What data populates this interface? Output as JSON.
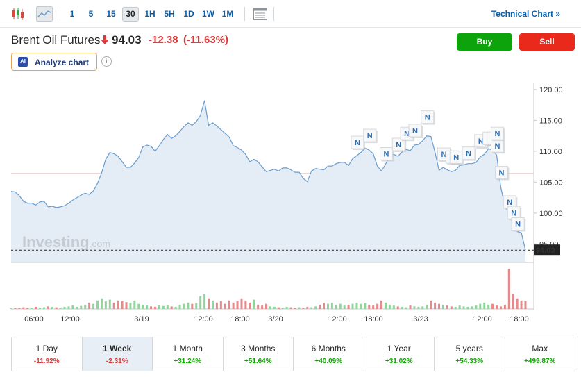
{
  "toolbar": {
    "chart_type_icons": [
      "candlestick-icon",
      "area-chart-icon"
    ],
    "timeframes": [
      "1",
      "5",
      "15",
      "30",
      "1H",
      "5H",
      "1D",
      "1W",
      "1M"
    ],
    "active_timeframe": "30",
    "settings_icon": "table-icon",
    "technical_chart_label": "Technical Chart »"
  },
  "header": {
    "title": "Brent Oil Futures",
    "price": "94.03",
    "change": "-12.38",
    "change_pct": "(-11.63%)",
    "buy_label": "Buy",
    "sell_label": "Sell",
    "analyze_badge": "AI",
    "analyze_label": "Analyze chart",
    "info_glyph": "i"
  },
  "colors": {
    "buy": "#0ca30c",
    "sell": "#e8291b",
    "negative": "#dc3a3a",
    "positive": "#0ea600",
    "line": "#6a9ccf",
    "area": "#e4edf6",
    "link": "#0a5ea8"
  },
  "chart_data": {
    "type": "area",
    "y_axis_ticks": [
      "120.00",
      "115.00",
      "110.00",
      "105.00",
      "100.00",
      "95.00"
    ],
    "ylim": [
      92,
      121
    ],
    "x_axis_ticks": [
      "06:00",
      "12:00",
      "3/19",
      "12:00",
      "18:00",
      "3/20",
      "12:00",
      "18:00",
      "3/23",
      "12:00",
      "18:00"
    ],
    "current_price_label": "94.03",
    "reference_price": 106.4,
    "watermark": "Investing",
    "watermark_suffix": ".com",
    "news_marker_label": "N",
    "series": [
      {
        "values": [
          103.5,
          103.4,
          102.8,
          101.9,
          101.6,
          101.6,
          101.3,
          101.8,
          101.9,
          101.0,
          101.1,
          100.9,
          101.0,
          101.2,
          101.6,
          102.1,
          102.5,
          102.9,
          103.2,
          103.0,
          103.6,
          104.8,
          106.5,
          108.7,
          109.8,
          109.6,
          109.2,
          108.3,
          107.4,
          107.4,
          108.1,
          109.0,
          110.7,
          111.0,
          110.8,
          110.0,
          110.9,
          111.9,
          112.7,
          112.1,
          112.5,
          113.2,
          114.0,
          114.6,
          114.2,
          114.8,
          115.8,
          118.2,
          114.2,
          114.6,
          114.1,
          113.5,
          112.9,
          112.3,
          110.9,
          110.6,
          110.2,
          109.5,
          108.3,
          108.7,
          108.3,
          107.5,
          106.7,
          106.9,
          107.1,
          106.8,
          107.3,
          107.3,
          107.0,
          106.6,
          106.6,
          105.6,
          105.1,
          106.8,
          107.2,
          107.1,
          107.0,
          107.6,
          107.6,
          108.0,
          108.2,
          108.2,
          107.7,
          108.8,
          109.3,
          109.8,
          110.5,
          110.2,
          109.6,
          107.6,
          106.8,
          107.9,
          109.2,
          109.5,
          109.2,
          109.9,
          110.3,
          110.1,
          111.0,
          111.1,
          111.7,
          112.5,
          112.4,
          109.9,
          106.9,
          107.4,
          107.0,
          106.7,
          106.9,
          107.7,
          107.8,
          108.0,
          108.0,
          108.2,
          109.1,
          109.5,
          110.4,
          110.2,
          109.4,
          104.2,
          101.1,
          100.1,
          98.6,
          97.0,
          96.8,
          94.0
        ]
      }
    ],
    "volume": [
      0.02,
      0.03,
      0.02,
      0.04,
      0.03,
      0.02,
      0.05,
      0.03,
      0.04,
      0.06,
      0.05,
      0.04,
      0.03,
      0.05,
      0.06,
      0.08,
      0.05,
      0.07,
      0.1,
      0.15,
      0.12,
      0.2,
      0.25,
      0.18,
      0.22,
      0.15,
      0.2,
      0.18,
      0.16,
      0.14,
      0.2,
      0.12,
      0.1,
      0.08,
      0.06,
      0.05,
      0.08,
      0.07,
      0.09,
      0.06,
      0.05,
      0.1,
      0.12,
      0.15,
      0.12,
      0.14,
      0.3,
      0.35,
      0.25,
      0.2,
      0.15,
      0.18,
      0.12,
      0.2,
      0.15,
      0.18,
      0.25,
      0.2,
      0.15,
      0.22,
      0.1,
      0.08,
      0.12,
      0.06,
      0.05,
      0.04,
      0.03,
      0.05,
      0.04,
      0.03,
      0.04,
      0.03,
      0.05,
      0.04,
      0.06,
      0.1,
      0.14,
      0.12,
      0.15,
      0.1,
      0.12,
      0.08,
      0.1,
      0.12,
      0.15,
      0.12,
      0.14,
      0.1,
      0.08,
      0.12,
      0.2,
      0.15,
      0.1,
      0.08,
      0.06,
      0.05,
      0.04,
      0.08,
      0.06,
      0.05,
      0.06,
      0.1,
      0.2,
      0.15,
      0.12,
      0.1,
      0.08,
      0.06,
      0.05,
      0.08,
      0.06,
      0.05,
      0.06,
      0.08,
      0.12,
      0.15,
      0.1,
      0.12,
      0.08,
      0.06,
      0.1,
      0.95,
      0.35,
      0.25,
      0.2,
      0.18
    ]
  },
  "periods": [
    {
      "label": "1 Day",
      "value": "-11.92%",
      "dir": "neg"
    },
    {
      "label": "1 Week",
      "value": "-2.31%",
      "dir": "neg"
    },
    {
      "label": "1 Month",
      "value": "+31.24%",
      "dir": "pos"
    },
    {
      "label": "3 Months",
      "value": "+51.64%",
      "dir": "pos"
    },
    {
      "label": "6 Months",
      "value": "+40.09%",
      "dir": "pos"
    },
    {
      "label": "1 Year",
      "value": "+31.02%",
      "dir": "pos"
    },
    {
      "label": "5 years",
      "value": "+54.33%",
      "dir": "pos"
    },
    {
      "label": "Max",
      "value": "+499.87%",
      "dir": "pos"
    }
  ],
  "active_period": "1 Week"
}
